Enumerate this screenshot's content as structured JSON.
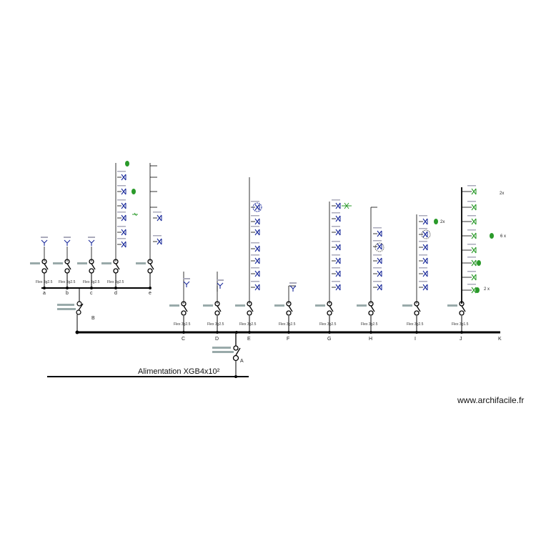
{
  "feed": {
    "label": "Alimentation XGB4x10²",
    "breaker_label": "A"
  },
  "sub_panel": {
    "breaker_label": "B"
  },
  "watermark": "www.archifacile.fr",
  "left_circuits": [
    {
      "letter": "a",
      "cable": "Flex 3g2.5"
    },
    {
      "letter": "b",
      "cable": "Flex 3g2.5"
    },
    {
      "letter": "c",
      "cable": "Flex 3g2.5"
    },
    {
      "letter": "d",
      "cable": "Flex 3g2.5"
    },
    {
      "letter": "e",
      "cable": ""
    }
  ],
  "main_circuits": [
    {
      "letter": "C",
      "cable": "Flex 3g2.5"
    },
    {
      "letter": "D",
      "cable": "Flex 3g2.5"
    },
    {
      "letter": "E",
      "cable": "Flex 3g2.5"
    },
    {
      "letter": "F",
      "cable": "Flex 3g2.5"
    },
    {
      "letter": "G",
      "cable": "Flex 3g2.5"
    },
    {
      "letter": "H",
      "cable": "Flex 3g2.5"
    },
    {
      "letter": "I",
      "cable": "Flex 3g2.5"
    },
    {
      "letter": "J",
      "cable": "Flex 3g1.5"
    },
    {
      "letter": "K",
      "cable": ""
    }
  ],
  "multipliers": [
    "2x",
    "6 x",
    "2 x",
    "2x"
  ],
  "colors": {
    "line": "#000000",
    "symbol_blue": "#1a2a9a",
    "symbol_green": "#2a9a2a"
  }
}
